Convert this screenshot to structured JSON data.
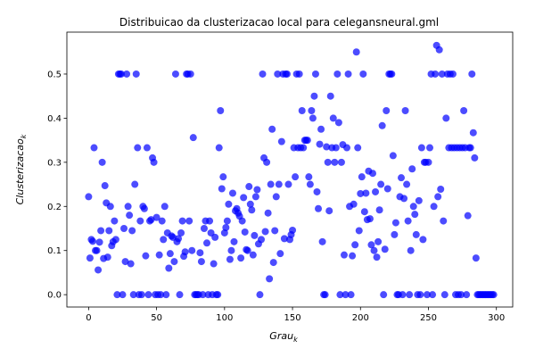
{
  "chart_data": {
    "type": "scatter",
    "title": "Distribuicao da clusterizacao local para celegansneural.gml",
    "xlabel": {
      "base": "Grau",
      "sub": "k"
    },
    "ylabel": {
      "base": "Clusterizacao",
      "sub": "k"
    },
    "xlim": [
      -16,
      312
    ],
    "ylim": [
      -0.028,
      0.595
    ],
    "xticks": [
      0,
      50,
      100,
      150,
      200,
      250,
      300
    ],
    "yticks": [
      "0.0",
      "0.1",
      "0.2",
      "0.3",
      "0.4",
      "0.5"
    ],
    "grid": false,
    "marker_color": "#0000ff",
    "series": [
      {
        "points": [
          [
            0,
            0.222
          ],
          [
            1,
            0.083
          ],
          [
            2,
            0.125
          ],
          [
            3,
            0.121
          ],
          [
            4,
            0.333
          ],
          [
            5,
            0.1
          ],
          [
            6,
            0.1
          ],
          [
            7,
            0.056
          ],
          [
            8,
            0.119
          ],
          [
            9,
            0.145
          ],
          [
            10,
            0.3
          ],
          [
            11,
            0.082
          ],
          [
            12,
            0.247
          ],
          [
            13,
            0.208
          ],
          [
            14,
            0.085
          ],
          [
            15,
            0.145
          ],
          [
            16,
            0.2
          ],
          [
            17,
            0.111
          ],
          [
            18,
            0.12
          ],
          [
            19,
            0.167
          ],
          [
            20,
            0.125
          ],
          [
            21,
            0.0
          ],
          [
            22,
            0.5
          ],
          [
            23,
            0.5
          ],
          [
            24,
            0.5
          ],
          [
            25,
            0.0
          ],
          [
            26,
            0.15
          ],
          [
            27,
            0.075
          ],
          [
            28,
            0.5
          ],
          [
            29,
            0.2
          ],
          [
            30,
            0.18
          ],
          [
            31,
            0.07
          ],
          [
            32,
            0.145
          ],
          [
            33,
            0.0
          ],
          [
            34,
            0.25
          ],
          [
            35,
            0.5
          ],
          [
            36,
            0.333
          ],
          [
            37,
            0.0
          ],
          [
            38,
            0.167
          ],
          [
            39,
            0.0
          ],
          [
            40,
            0.2
          ],
          [
            41,
            0.195
          ],
          [
            42,
            0.088
          ],
          [
            43,
            0.333
          ],
          [
            44,
            0.0
          ],
          [
            45,
            0.167
          ],
          [
            46,
            0.17
          ],
          [
            47,
            0.31
          ],
          [
            48,
            0.3
          ],
          [
            49,
            0.0
          ],
          [
            50,
            0.175
          ],
          [
            51,
            0.0
          ],
          [
            52,
            0.09
          ],
          [
            53,
            0.0
          ],
          [
            54,
            0.167
          ],
          [
            55,
            0.125
          ],
          [
            56,
            0.2
          ],
          [
            57,
            0.0
          ],
          [
            58,
            0.14
          ],
          [
            59,
            0.06
          ],
          [
            60,
            0.093
          ],
          [
            61,
            0.133
          ],
          [
            62,
            0.13
          ],
          [
            63,
            0.075
          ],
          [
            64,
            0.5
          ],
          [
            65,
            0.12
          ],
          [
            66,
            0.127
          ],
          [
            67,
            0.0
          ],
          [
            68,
            0.14
          ],
          [
            69,
            0.167
          ],
          [
            70,
            0.087
          ],
          [
            71,
            0.097
          ],
          [
            72,
            0.5
          ],
          [
            73,
            0.5
          ],
          [
            74,
            0.167
          ],
          [
            75,
            0.5
          ],
          [
            76,
            0.1
          ],
          [
            77,
            0.356
          ],
          [
            78,
            0.0
          ],
          [
            79,
            0.0
          ],
          [
            80,
            0.0
          ],
          [
            81,
            0.0
          ],
          [
            82,
            0.095
          ],
          [
            83,
            0.075
          ],
          [
            84,
            0.0
          ],
          [
            85,
            0.15
          ],
          [
            86,
            0.167
          ],
          [
            87,
            0.117
          ],
          [
            88,
            0.0
          ],
          [
            89,
            0.167
          ],
          [
            90,
            0.14
          ],
          [
            91,
            0.0
          ],
          [
            92,
            0.07
          ],
          [
            93,
            0.13
          ],
          [
            94,
            0.0
          ],
          [
            95,
            0.0
          ],
          [
            96,
            0.333
          ],
          [
            97,
            0.417
          ],
          [
            98,
            0.24
          ],
          [
            99,
            0.267
          ],
          [
            100,
            0.14
          ],
          [
            101,
            0.152
          ],
          [
            102,
            0.167
          ],
          [
            103,
            0.205
          ],
          [
            104,
            0.08
          ],
          [
            105,
            0.1
          ],
          [
            106,
            0.23
          ],
          [
            107,
            0.12
          ],
          [
            108,
            0.19
          ],
          [
            109,
            0.195
          ],
          [
            110,
            0.185
          ],
          [
            111,
            0.178
          ],
          [
            112,
            0.083
          ],
          [
            113,
            0.167
          ],
          [
            114,
            0.22
          ],
          [
            115,
            0.142
          ],
          [
            116,
            0.102
          ],
          [
            117,
            0.1
          ],
          [
            118,
            0.245
          ],
          [
            119,
            0.205
          ],
          [
            120,
            0.192
          ],
          [
            121,
            0.09
          ],
          [
            122,
            0.134
          ],
          [
            123,
            0.222
          ],
          [
            124,
            0.238
          ],
          [
            125,
            0.115
          ],
          [
            126,
            0.0
          ],
          [
            127,
            0.125
          ],
          [
            128,
            0.5
          ],
          [
            129,
            0.31
          ],
          [
            130,
            0.143
          ],
          [
            131,
            0.3
          ],
          [
            132,
            0.185
          ],
          [
            133,
            0.036
          ],
          [
            134,
            0.25
          ],
          [
            135,
            0.375
          ],
          [
            136,
            0.073
          ],
          [
            137,
            0.145
          ],
          [
            138,
            0.222
          ],
          [
            139,
            0.5
          ],
          [
            140,
            0.25
          ],
          [
            141,
            0.093
          ],
          [
            142,
            0.347
          ],
          [
            143,
            0.5
          ],
          [
            144,
            0.127
          ],
          [
            145,
            0.5
          ],
          [
            146,
            0.5
          ],
          [
            147,
            0.25
          ],
          [
            148,
            0.125
          ],
          [
            149,
            0.136
          ],
          [
            150,
            0.146
          ],
          [
            151,
            0.333
          ],
          [
            152,
            0.267
          ],
          [
            153,
            0.5
          ],
          [
            154,
            0.333
          ],
          [
            155,
            0.5
          ],
          [
            156,
            0.333
          ],
          [
            157,
            0.417
          ],
          [
            158,
            0.333
          ],
          [
            159,
            0.35
          ],
          [
            160,
            0.35
          ],
          [
            161,
            0.35
          ],
          [
            162,
            0.267
          ],
          [
            163,
            0.25
          ],
          [
            164,
            0.417
          ],
          [
            165,
            0.4
          ],
          [
            166,
            0.45
          ],
          [
            167,
            0.5
          ],
          [
            168,
            0.233
          ],
          [
            169,
            0.195
          ],
          [
            170,
            0.341
          ],
          [
            171,
            0.375
          ],
          [
            172,
            0.12
          ],
          [
            173,
            0.0
          ],
          [
            174,
            0.0
          ],
          [
            175,
            0.335
          ],
          [
            176,
            0.3
          ],
          [
            177,
            0.19
          ],
          [
            178,
            0.45
          ],
          [
            179,
            0.333
          ],
          [
            180,
            0.4
          ],
          [
            181,
            0.3
          ],
          [
            182,
            0.333
          ],
          [
            183,
            0.5
          ],
          [
            184,
            0.39
          ],
          [
            185,
            0.0
          ],
          [
            186,
            0.3
          ],
          [
            187,
            0.34
          ],
          [
            188,
            0.09
          ],
          [
            189,
            0.0
          ],
          [
            190,
            0.333
          ],
          [
            191,
            0.5
          ],
          [
            192,
            0.2
          ],
          [
            193,
            0.0
          ],
          [
            194,
            0.088
          ],
          [
            195,
            0.205
          ],
          [
            196,
            0.113
          ],
          [
            197,
            0.55
          ],
          [
            198,
            0.333
          ],
          [
            199,
            0.145
          ],
          [
            200,
            0.229
          ],
          [
            201,
            0.267
          ],
          [
            202,
            0.5
          ],
          [
            203,
            0.188
          ],
          [
            204,
            0.23
          ],
          [
            205,
            0.17
          ],
          [
            206,
            0.28
          ],
          [
            207,
            0.172
          ],
          [
            208,
            0.113
          ],
          [
            209,
            0.275
          ],
          [
            210,
            0.1
          ],
          [
            211,
            0.233
          ],
          [
            212,
            0.085
          ],
          [
            213,
            0.12
          ],
          [
            214,
            0.192
          ],
          [
            215,
            0.25
          ],
          [
            216,
            0.383
          ],
          [
            217,
            0.0
          ],
          [
            218,
            0.103
          ],
          [
            219,
            0.417
          ],
          [
            220,
            0.24
          ],
          [
            221,
            0.5
          ],
          [
            222,
            0.5
          ],
          [
            223,
            0.5
          ],
          [
            224,
            0.315
          ],
          [
            225,
            0.136
          ],
          [
            226,
            0.163
          ],
          [
            227,
            0.0
          ],
          [
            228,
            0.0
          ],
          [
            229,
            0.222
          ],
          [
            230,
            0.265
          ],
          [
            231,
            0.0
          ],
          [
            232,
            0.218
          ],
          [
            233,
            0.417
          ],
          [
            234,
            0.25
          ],
          [
            235,
            0.167
          ],
          [
            236,
            0.0
          ],
          [
            237,
            0.1
          ],
          [
            238,
            0.285
          ],
          [
            239,
            0.2
          ],
          [
            240,
            0.182
          ],
          [
            241,
            0.136
          ],
          [
            242,
            0.0
          ],
          [
            243,
            0.213
          ],
          [
            244,
            0.0
          ],
          [
            245,
            0.333
          ],
          [
            246,
            0.125
          ],
          [
            247,
            0.3
          ],
          [
            248,
            0.3
          ],
          [
            249,
            0.0
          ],
          [
            250,
            0.3
          ],
          [
            251,
            0.333
          ],
          [
            252,
            0.5
          ],
          [
            253,
            0.0
          ],
          [
            254,
            0.2
          ],
          [
            255,
            0.5
          ],
          [
            256,
            0.565
          ],
          [
            257,
            0.222
          ],
          [
            258,
            0.555
          ],
          [
            259,
            0.239
          ],
          [
            260,
            0.5
          ],
          [
            261,
            0.167
          ],
          [
            262,
            0.0
          ],
          [
            263,
            0.4
          ],
          [
            264,
            0.5
          ],
          [
            265,
            0.333
          ],
          [
            266,
            0.5
          ],
          [
            267,
            0.333
          ],
          [
            268,
            0.5
          ],
          [
            269,
            0.333
          ],
          [
            270,
            0.0
          ],
          [
            271,
            0.333
          ],
          [
            272,
            0.0
          ],
          [
            273,
            0.333
          ],
          [
            274,
            0.0
          ],
          [
            275,
            0.333
          ],
          [
            276,
            0.417
          ],
          [
            277,
            0.333
          ],
          [
            278,
            0.0
          ],
          [
            279,
            0.179
          ],
          [
            280,
            0.333
          ],
          [
            281,
            0.333
          ],
          [
            282,
            0.5
          ],
          [
            283,
            0.367
          ],
          [
            284,
            0.31
          ],
          [
            285,
            0.083
          ],
          [
            286,
            0.0
          ],
          [
            287,
            0.0
          ],
          [
            288,
            0.0
          ],
          [
            289,
            0.0
          ],
          [
            290,
            0.0
          ],
          [
            291,
            0.0
          ],
          [
            292,
            0.0
          ],
          [
            293,
            0.0
          ],
          [
            294,
            0.0
          ],
          [
            295,
            0.0
          ],
          [
            296,
            0.0
          ],
          [
            297,
            0.0
          ],
          [
            298,
            0.0
          ]
        ]
      }
    ]
  }
}
